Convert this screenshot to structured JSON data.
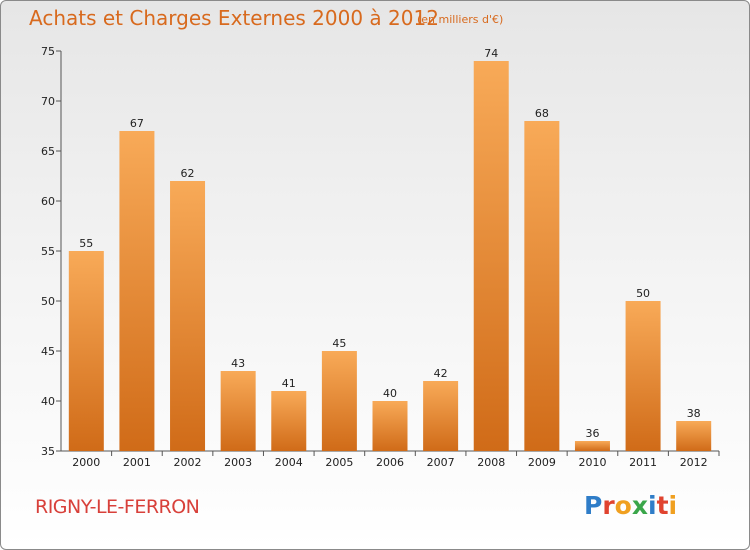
{
  "chart_data": {
    "type": "bar",
    "title": "Achats et Charges Externes 2000 à 2012",
    "subtitle": "(en milliers d'€)",
    "categories": [
      "2000",
      "2001",
      "2002",
      "2003",
      "2004",
      "2005",
      "2006",
      "2007",
      "2008",
      "2009",
      "2010",
      "2011",
      "2012"
    ],
    "values": [
      55,
      67,
      62,
      43,
      41,
      45,
      40,
      42,
      74,
      68,
      36,
      50,
      38
    ],
    "xlabel": "",
    "ylabel": "",
    "ylim": [
      35,
      75
    ],
    "yticks": [
      35,
      40,
      45,
      50,
      55,
      60,
      65,
      70,
      75
    ],
    "grid": false,
    "legend": "none",
    "bar_color_top": "#f8aa58",
    "bar_color_bottom": "#d06b18"
  },
  "location": "RIGNY-LE-FERRON",
  "brand": {
    "text": "Proxiti",
    "letters": [
      {
        "char": "P",
        "color": "#2f7dc8"
      },
      {
        "char": "r",
        "color": "#e0432f"
      },
      {
        "char": "o",
        "color": "#f0a020"
      },
      {
        "char": "x",
        "color": "#3aa64a"
      },
      {
        "char": "i",
        "color": "#2f7dc8"
      },
      {
        "char": "t",
        "color": "#e0432f"
      },
      {
        "char": "i",
        "color": "#f0a020"
      }
    ]
  }
}
